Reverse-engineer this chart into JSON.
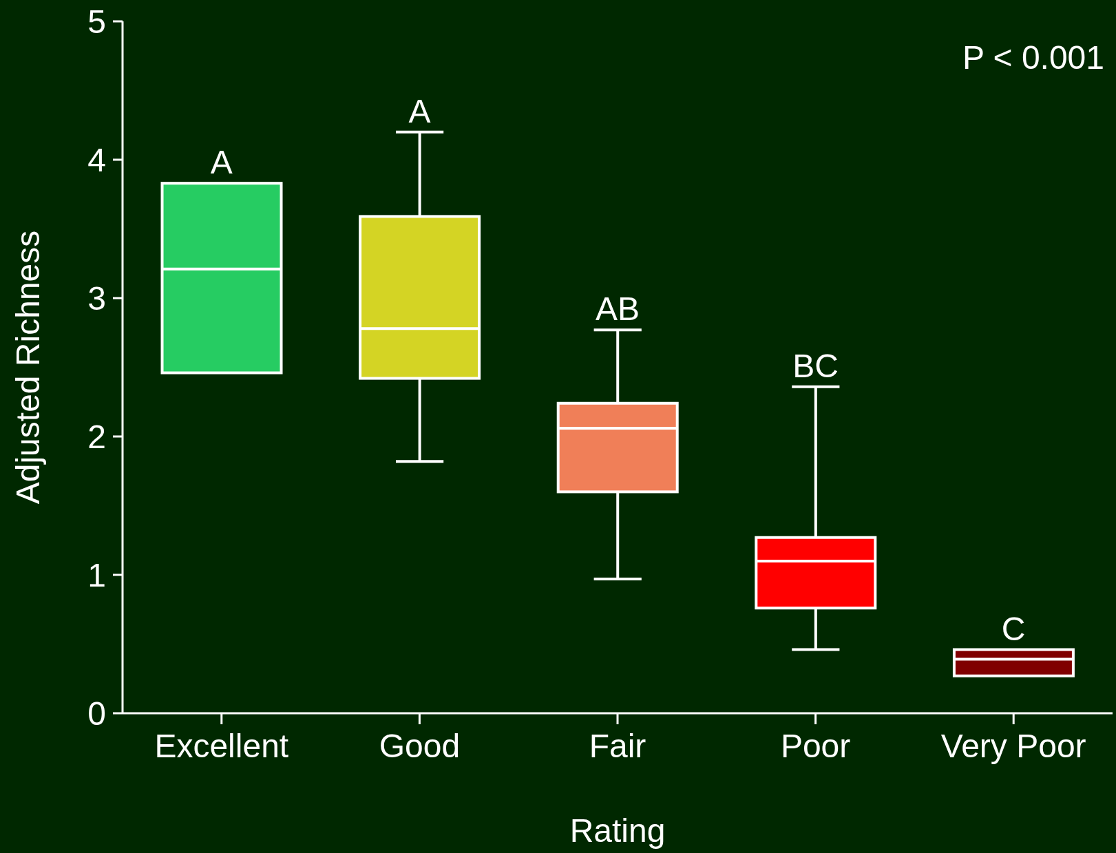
{
  "chart_data": {
    "type": "box",
    "xlabel": "Rating",
    "ylabel": "Adjusted Richness",
    "categories": [
      "Excellent",
      "Good",
      "Fair",
      "Poor",
      "Very Poor"
    ],
    "colors": [
      "#26cc62",
      "#d4d424",
      "#f07f58",
      "#ff0000",
      "#800000"
    ],
    "boxes": [
      {
        "low": 2.46,
        "q1": 2.46,
        "median": 3.21,
        "q3": 3.83,
        "high": 3.83
      },
      {
        "low": 1.82,
        "q1": 2.42,
        "median": 2.78,
        "q3": 3.59,
        "high": 4.2
      },
      {
        "low": 0.97,
        "q1": 1.6,
        "median": 2.06,
        "q3": 2.24,
        "high": 2.77
      },
      {
        "low": 0.46,
        "q1": 0.76,
        "median": 1.1,
        "q3": 1.27,
        "high": 2.36
      },
      {
        "low": 0.27,
        "q1": 0.27,
        "median": 0.39,
        "q3": 0.46,
        "high": 0.46
      }
    ],
    "ylim": [
      0,
      5
    ],
    "yticks": [
      0,
      1,
      2,
      3,
      4,
      5
    ],
    "annotations": [
      {
        "text": "A",
        "x": "Excellent",
        "y": 3.83
      },
      {
        "text": "A",
        "x": "Good",
        "y": 4.2
      },
      {
        "text": "AB",
        "x": "Fair",
        "y": 2.77
      },
      {
        "text": "BC",
        "x": "Poor",
        "y": 2.36
      },
      {
        "text": "C",
        "x": "Very Poor",
        "y": 0.46
      },
      "P < 0.001"
    ]
  }
}
